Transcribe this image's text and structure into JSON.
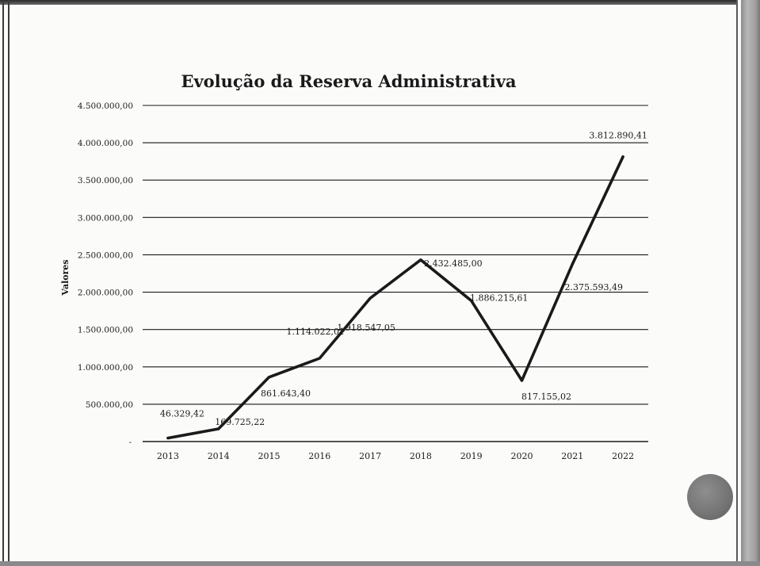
{
  "chart_data": {
    "type": "line",
    "title": "Evolução da Reserva Administrativa",
    "ylabel": "Valores",
    "xlabel": "",
    "ylim": [
      0,
      4500000
    ],
    "y_ticks": [
      0,
      500000,
      1000000,
      1500000,
      2000000,
      2500000,
      3000000,
      3500000,
      4000000,
      4500000
    ],
    "y_tick_labels": [
      "-",
      "500.000,00",
      "1.000.000,00",
      "1.500.000,00",
      "2.000.000,00",
      "2.500.000,00",
      "3.000.000,00",
      "3.500.000,00",
      "4.000.000,00",
      "4.500.000,00"
    ],
    "categories": [
      "2013",
      "2014",
      "2015",
      "2016",
      "2017",
      "2018",
      "2019",
      "2020",
      "2021",
      "2022"
    ],
    "series": [
      {
        "values": [
          46329.42,
          169725.22,
          861643.4,
          1114022.01,
          1918547.05,
          2432485.0,
          1886215.61,
          817155.02,
          2375593.49,
          3812890.41
        ],
        "labels": [
          "46.329,42",
          "169.725,22",
          "861.643,40",
          "1.114.022,01",
          "1.918.547,05",
          "2.432.485,00",
          "1.886.215,61",
          "817.155,02",
          "2.375.593,49",
          "3.812.890,41"
        ]
      }
    ],
    "grid": true,
    "legend": "none",
    "line_color": "#1a1a1a",
    "grid_color": "#1a1a1a"
  }
}
